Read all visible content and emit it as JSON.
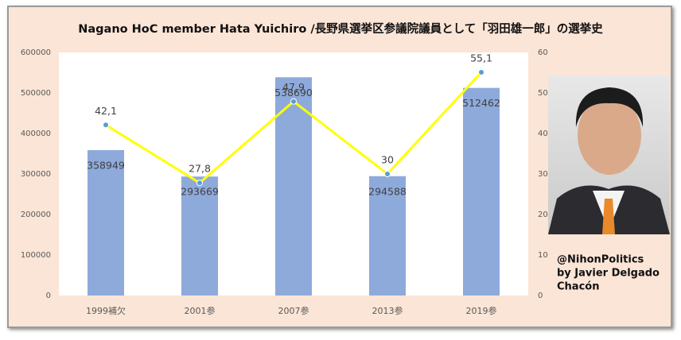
{
  "chart_data": {
    "type": "bar-line",
    "title": "Nagano HoC member Hata Yuichiro /長野県選挙区参議院議員として「羽田雄一郎」の選挙史",
    "categories": [
      "1999補欠",
      "2001参",
      "2007参",
      "2013参",
      "2019参"
    ],
    "series": [
      {
        "type": "bar",
        "color": "#8eaadb",
        "values": [
          358949,
          293669,
          538690,
          294588,
          512462
        ]
      },
      {
        "type": "line",
        "axis": "y2",
        "color": "#ffff00",
        "marker_color": "#5b9bd5",
        "values": [
          42.1,
          27.8,
          47.9,
          30,
          55.1
        ],
        "value_labels": [
          "42,1",
          "27,8",
          "47,9",
          "30",
          "55,1"
        ]
      }
    ],
    "ylim": [
      0,
      600000
    ],
    "yticks": [
      0,
      100000,
      200000,
      300000,
      400000,
      500000,
      600000
    ],
    "y2lim": [
      0,
      60
    ],
    "y2ticks": [
      0,
      10,
      20,
      30,
      40,
      50,
      60
    ],
    "credit": [
      "@NihonPolitics",
      "by Javier Delgado",
      "Chacón"
    ]
  }
}
